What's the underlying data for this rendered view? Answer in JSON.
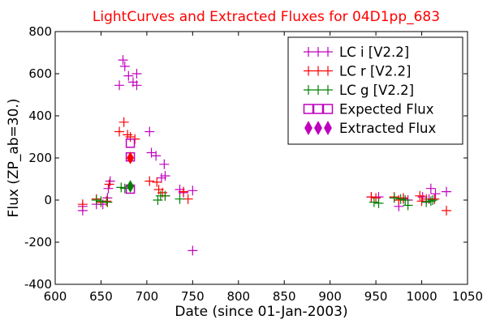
{
  "chart_data": {
    "type": "scatter",
    "title": "LightCurves and Extracted Fluxes for 04D1pp_683",
    "xlabel": "Date (since 01-Jan-2003)",
    "ylabel": "Flux (ZP_ab=30.)",
    "xlim": [
      600,
      1050
    ],
    "ylim": [
      -400,
      800
    ],
    "xticks": [
      "600",
      "650",
      "700",
      "750",
      "800",
      "850",
      "900",
      "950",
      "1000",
      "1050"
    ],
    "yticks": [
      "800",
      "600",
      "400",
      "200",
      "0",
      "-200",
      "-400"
    ],
    "grid": false,
    "legend_position": "top-right",
    "colors": {
      "lc_i": "#bf00bf",
      "lc_r": "#ff0000",
      "lc_g": "#008000",
      "expected": "#bf00bf",
      "extracted_red": "#ff0000",
      "extracted_green": "#008000",
      "title": "#ff0000"
    },
    "series": [
      {
        "name": "LC i [V2.2]",
        "marker": "plus",
        "color": "#bf00bf",
        "points": [
          [
            630,
            -30
          ],
          [
            630,
            -50
          ],
          [
            645,
            -20
          ],
          [
            652,
            -20
          ],
          [
            657,
            10
          ],
          [
            658,
            55
          ],
          [
            660,
            90
          ],
          [
            670,
            545
          ],
          [
            674,
            665
          ],
          [
            676,
            635
          ],
          [
            680,
            590
          ],
          [
            685,
            560
          ],
          [
            689,
            600
          ],
          [
            689,
            545
          ],
          [
            703,
            325
          ],
          [
            705,
            225
          ],
          [
            710,
            210
          ],
          [
            716,
            105
          ],
          [
            719,
            170
          ],
          [
            720,
            115
          ],
          [
            736,
            50
          ],
          [
            740,
            35
          ],
          [
            750,
            45
          ],
          [
            750,
            -240
          ],
          [
            945,
            15
          ],
          [
            953,
            15
          ],
          [
            975,
            -30
          ],
          [
            980,
            5
          ],
          [
            985,
            0
          ],
          [
            1001,
            15
          ],
          [
            1008,
            5
          ],
          [
            1010,
            55
          ],
          [
            1015,
            30
          ],
          [
            1027,
            40
          ]
        ]
      },
      {
        "name": "LC r [V2.2]",
        "marker": "plus",
        "color": "#ff0000",
        "points": [
          [
            630,
            -20
          ],
          [
            645,
            5
          ],
          [
            650,
            -10
          ],
          [
            656,
            -5
          ],
          [
            659,
            75
          ],
          [
            670,
            325
          ],
          [
            675,
            370
          ],
          [
            679,
            310
          ],
          [
            682,
            300
          ],
          [
            687,
            290
          ],
          [
            703,
            90
          ],
          [
            711,
            85
          ],
          [
            713,
            50
          ],
          [
            717,
            35
          ],
          [
            720,
            20
          ],
          [
            740,
            40
          ],
          [
            745,
            5
          ],
          [
            945,
            15
          ],
          [
            950,
            10
          ],
          [
            970,
            15
          ],
          [
            975,
            0
          ],
          [
            980,
            10
          ],
          [
            998,
            20
          ],
          [
            1000,
            -5
          ],
          [
            1005,
            5
          ],
          [
            1014,
            5
          ],
          [
            1027,
            -50
          ]
        ]
      },
      {
        "name": "LC g [V2.2]",
        "marker": "plus",
        "color": "#008000",
        "points": [
          [
            645,
            0
          ],
          [
            650,
            -5
          ],
          [
            657,
            -10
          ],
          [
            672,
            60
          ],
          [
            676,
            55
          ],
          [
            712,
            0
          ],
          [
            715,
            20
          ],
          [
            720,
            20
          ],
          [
            736,
            5
          ],
          [
            948,
            -10
          ],
          [
            953,
            -15
          ],
          [
            970,
            10
          ],
          [
            977,
            5
          ],
          [
            982,
            0
          ],
          [
            985,
            -25
          ],
          [
            1005,
            -10
          ],
          [
            1010,
            -5
          ],
          [
            1012,
            0
          ]
        ]
      },
      {
        "name": "Expected Flux",
        "marker": "square-open",
        "color": "#bf00bf",
        "points": [
          [
            682,
            270
          ],
          [
            682,
            205
          ],
          [
            682,
            52
          ]
        ]
      },
      {
        "name": "Extracted Flux",
        "marker": "diamond",
        "color": "#bf00bf",
        "points": [
          [
            682,
            200,
            "#ff0000"
          ],
          [
            682,
            65,
            "#008000"
          ]
        ]
      }
    ]
  }
}
